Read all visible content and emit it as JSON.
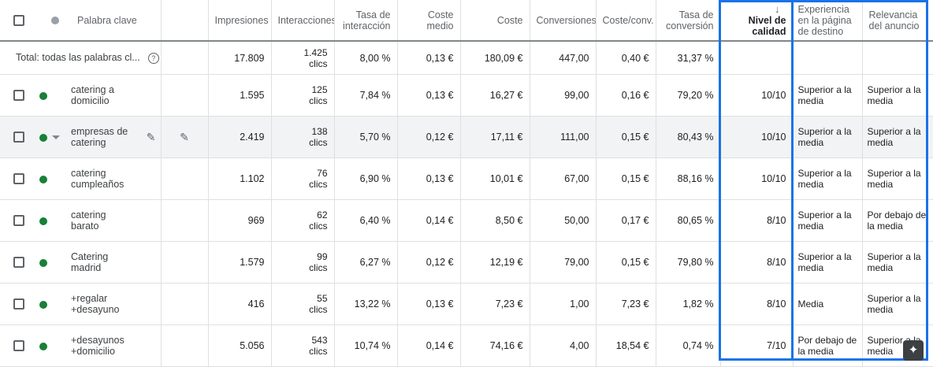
{
  "headers": {
    "keyword": "Palabra clave",
    "impressions": "Impresiones",
    "interactions": "Interacciones",
    "interaction_rate": "Tasa de interacción",
    "avg_cost": "Coste medio",
    "cost": "Coste",
    "conversions": "Conversiones",
    "cost_per_conv": "Coste/conv.",
    "conv_rate": "Tasa de conversión",
    "quality_score": "Nivel de calidad",
    "landing_page_exp": "Experiencia en la página de destino",
    "ad_relevance": "Relevancia del anuncio"
  },
  "icons": {
    "sort": "arrow-down-icon",
    "help": "help-icon",
    "edit": "pencil-icon",
    "fab": "sparkle-icon"
  },
  "colors": {
    "highlight": "#1a73e8",
    "status_enabled": "#188038"
  },
  "total": {
    "label": "Total: todas las palabras cl...",
    "impressions": "17.809",
    "interactions_value": "1.425",
    "interactions_unit": "clics",
    "interaction_rate": "8,00 %",
    "avg_cost": "0,13 €",
    "cost": "180,09 €",
    "conversions": "447,00",
    "cost_per_conv": "0,40 €",
    "conv_rate": "31,37 %"
  },
  "rows": [
    {
      "keyword_line1": "catering a",
      "keyword_line2": "domicilio",
      "impressions": "1.595",
      "interactions_value": "125",
      "interactions_unit": "clics",
      "interaction_rate": "7,84 %",
      "avg_cost": "0,13 €",
      "cost": "16,27 €",
      "conversions": "99,00",
      "cost_per_conv": "0,16 €",
      "conv_rate": "79,20 %",
      "quality_score": "10/10",
      "landing_page_exp": "Superior a la media",
      "ad_relevance": "Superior a la media"
    },
    {
      "keyword_line1": "empresas de",
      "keyword_line2": "catering",
      "impressions": "2.419",
      "interactions_value": "138",
      "interactions_unit": "clics",
      "interaction_rate": "5,70 %",
      "avg_cost": "0,12 €",
      "cost": "17,11 €",
      "conversions": "111,00",
      "cost_per_conv": "0,15 €",
      "conv_rate": "80,43 %",
      "quality_score": "10/10",
      "landing_page_exp": "Superior a la media",
      "ad_relevance": "Superior a la media"
    },
    {
      "keyword_line1": "catering",
      "keyword_line2": "cumpleaños",
      "impressions": "1.102",
      "interactions_value": "76",
      "interactions_unit": "clics",
      "interaction_rate": "6,90 %",
      "avg_cost": "0,13 €",
      "cost": "10,01 €",
      "conversions": "67,00",
      "cost_per_conv": "0,15 €",
      "conv_rate": "88,16 %",
      "quality_score": "10/10",
      "landing_page_exp": "Superior a la media",
      "ad_relevance": "Superior a la media"
    },
    {
      "keyword_line1": "catering",
      "keyword_line2": "barato",
      "impressions": "969",
      "interactions_value": "62",
      "interactions_unit": "clics",
      "interaction_rate": "6,40 %",
      "avg_cost": "0,14 €",
      "cost": "8,50 €",
      "conversions": "50,00",
      "cost_per_conv": "0,17 €",
      "conv_rate": "80,65 %",
      "quality_score": "8/10",
      "landing_page_exp": "Superior a la media",
      "ad_relevance": "Por debajo de la media"
    },
    {
      "keyword_line1": "Catering",
      "keyword_line2": "madrid",
      "impressions": "1.579",
      "interactions_value": "99",
      "interactions_unit": "clics",
      "interaction_rate": "6,27 %",
      "avg_cost": "0,12 €",
      "cost": "12,19 €",
      "conversions": "79,00",
      "cost_per_conv": "0,15 €",
      "conv_rate": "79,80 %",
      "quality_score": "8/10",
      "landing_page_exp": "Superior a la media",
      "ad_relevance": "Superior a la media"
    },
    {
      "keyword_line1": "+regalar",
      "keyword_line2": "+desayuno",
      "impressions": "416",
      "interactions_value": "55",
      "interactions_unit": "clics",
      "interaction_rate": "13,22 %",
      "avg_cost": "0,13 €",
      "cost": "7,23 €",
      "conversions": "1,00",
      "cost_per_conv": "7,23 €",
      "conv_rate": "1,82 %",
      "quality_score": "8/10",
      "landing_page_exp": "Media",
      "ad_relevance": "Superior a la media"
    },
    {
      "keyword_line1": "+desayunos",
      "keyword_line2": "+domicilio",
      "impressions": "5.056",
      "interactions_value": "543",
      "interactions_unit": "clics",
      "interaction_rate": "10,74 %",
      "avg_cost": "0,14 €",
      "cost": "74,16 €",
      "conversions": "4,00",
      "cost_per_conv": "18,54 €",
      "conv_rate": "0,74 %",
      "quality_score": "7/10",
      "landing_page_exp": "Por debajo de la media",
      "ad_relevance": "Superior a la media"
    }
  ]
}
